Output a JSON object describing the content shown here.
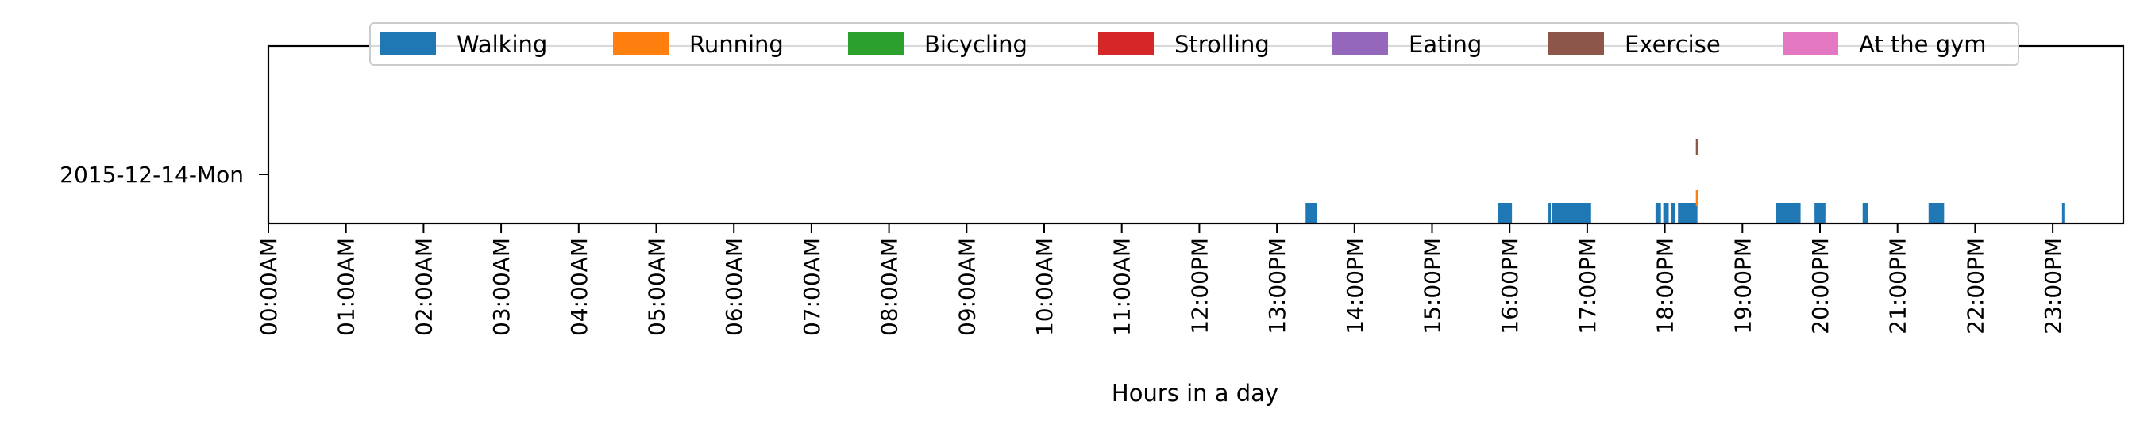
{
  "chart_data": {
    "type": "timeline",
    "xlabel": "Hours in a day",
    "ylabel": "",
    "x_range_hours": [
      0,
      24
    ],
    "x_tick_labels": [
      "00:00AM",
      "01:00AM",
      "02:00AM",
      "03:00AM",
      "04:00AM",
      "05:00AM",
      "06:00AM",
      "07:00AM",
      "08:00AM",
      "09:00AM",
      "10:00AM",
      "11:00AM",
      "12:00PM",
      "13:00PM",
      "14:00PM",
      "15:00PM",
      "16:00PM",
      "17:00PM",
      "18:00PM",
      "19:00PM",
      "20:00PM",
      "21:00PM",
      "22:00PM",
      "23:00PM"
    ],
    "y_categories": [
      "2015-12-14-Mon"
    ],
    "legend_placement": "top-center",
    "grid": false,
    "series": [
      {
        "name": "Walking",
        "color": "#1f77b4",
        "level": 0,
        "intervals": [
          [
            13.37,
            13.52
          ],
          [
            15.85,
            16.03
          ],
          [
            16.5,
            16.53
          ],
          [
            16.55,
            17.05
          ],
          [
            17.88,
            17.95
          ],
          [
            17.98,
            18.05
          ],
          [
            18.08,
            18.13
          ],
          [
            18.17,
            18.42
          ],
          [
            19.43,
            19.75
          ],
          [
            19.93,
            20.07
          ],
          [
            20.55,
            20.62
          ],
          [
            21.4,
            21.6
          ],
          [
            23.12,
            23.15
          ]
        ]
      },
      {
        "name": "Running",
        "color": "#ff7f0e",
        "level": 1,
        "intervals": [
          [
            18.4,
            18.43
          ]
        ]
      },
      {
        "name": "Bicycling",
        "color": "#2ca02c",
        "level": 2,
        "intervals": []
      },
      {
        "name": "Strolling",
        "color": "#d62728",
        "level": 3,
        "intervals": []
      },
      {
        "name": "Eating",
        "color": "#9467bd",
        "level": 4,
        "intervals": []
      },
      {
        "name": "Exercise",
        "color": "#8c564b",
        "level": 5,
        "intervals": [
          [
            18.4,
            18.43
          ]
        ]
      },
      {
        "name": "At the gym",
        "color": "#e377c2",
        "level": 6,
        "intervals": []
      }
    ]
  }
}
